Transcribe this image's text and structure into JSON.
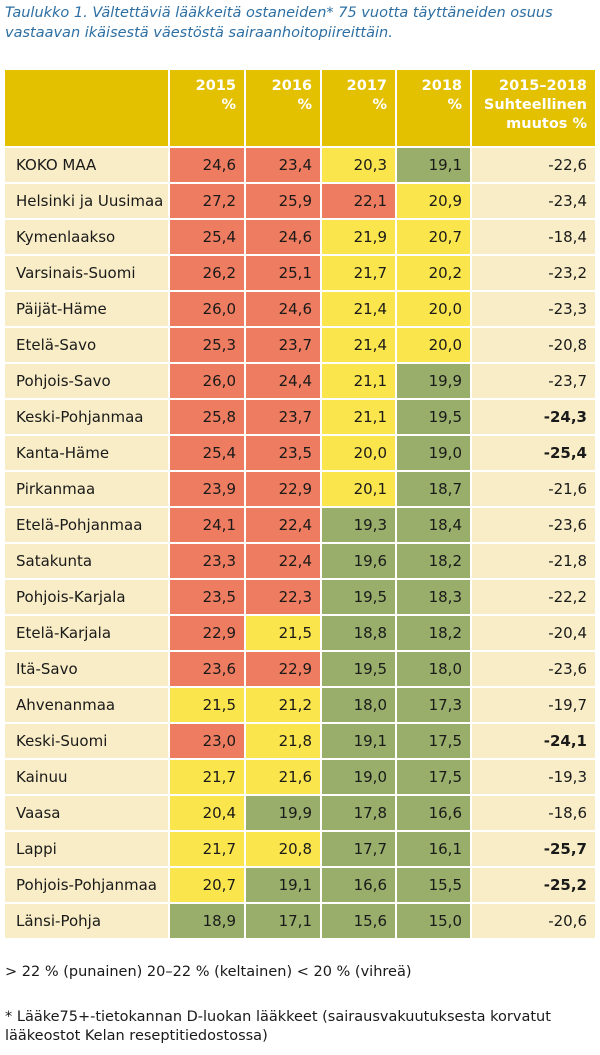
{
  "caption": "Taulukko 1. Vältettäviä lääkkeitä ostaneiden* 75 vuotta täyttäneiden osuus vastaavan ikäisestä väestöstä sairaanhoitopiireittäin.",
  "colors": {
    "header": "#e3c100",
    "red": "#ee7c60",
    "yellow": "#fae54c",
    "green": "#98ae6a",
    "beige": "#f8edc6"
  },
  "legend_text": "> 22 % (punainen) 20–22 % (keltainen) < 20 % (vihreä)",
  "footnote": "* Lääke75+-tietokannan D-luokan lääkkeet (sairausvakuutuksesta korvatut lääkeostot Kelan reseptitiedostossa)",
  "chart_data": {
    "type": "table",
    "columns": [
      "2015\n%",
      "2016\n%",
      "2017\n%",
      "2018\n%",
      "2015–2018\nSuhteellinen\nmuutos %"
    ],
    "rows": [
      {
        "name": "KOKO MAA",
        "values": [
          "24,6",
          "23,4",
          "20,3",
          "19,1"
        ],
        "change": "-22,6",
        "bold": false
      },
      {
        "name": "Helsinki ja Uusimaa",
        "values": [
          "27,2",
          "25,9",
          "22,1",
          "20,9"
        ],
        "change": "-23,4",
        "bold": false
      },
      {
        "name": "Kymenlaakso",
        "values": [
          "25,4",
          "24,6",
          "21,9",
          "20,7"
        ],
        "change": "-18,4",
        "bold": false
      },
      {
        "name": "Varsinais-Suomi",
        "values": [
          "26,2",
          "25,1",
          "21,7",
          "20,2"
        ],
        "change": "-23,2",
        "bold": false
      },
      {
        "name": "Päijät-Häme",
        "values": [
          "26,0",
          "24,6",
          "21,4",
          "20,0"
        ],
        "change": "-23,3",
        "bold": false
      },
      {
        "name": "Etelä-Savo",
        "values": [
          "25,3",
          "23,7",
          "21,4",
          "20,0"
        ],
        "change": "-20,8",
        "bold": false
      },
      {
        "name": "Pohjois-Savo",
        "values": [
          "26,0",
          "24,4",
          "21,1",
          "19,9"
        ],
        "change": "-23,7",
        "bold": false
      },
      {
        "name": "Keski-Pohjanmaa",
        "values": [
          "25,8",
          "23,7",
          "21,1",
          "19,5"
        ],
        "change": "-24,3",
        "bold": true
      },
      {
        "name": "Kanta-Häme",
        "values": [
          "25,4",
          "23,5",
          "20,0",
          "19,0"
        ],
        "change": "-25,4",
        "bold": true
      },
      {
        "name": "Pirkanmaa",
        "values": [
          "23,9",
          "22,9",
          "20,1",
          "18,7"
        ],
        "change": "-21,6",
        "bold": false
      },
      {
        "name": "Etelä-Pohjanmaa",
        "values": [
          "24,1",
          "22,4",
          "19,3",
          "18,4"
        ],
        "change": "-23,6",
        "bold": false
      },
      {
        "name": "Satakunta",
        "values": [
          "23,3",
          "22,4",
          "19,6",
          "18,2"
        ],
        "change": "-21,8",
        "bold": false
      },
      {
        "name": "Pohjois-Karjala",
        "values": [
          "23,5",
          "22,3",
          "19,5",
          "18,3"
        ],
        "change": "-22,2",
        "bold": false
      },
      {
        "name": "Etelä-Karjala",
        "values": [
          "22,9",
          "21,5",
          "18,8",
          "18,2"
        ],
        "change": "-20,4",
        "bold": false
      },
      {
        "name": "Itä-Savo",
        "values": [
          "23,6",
          "22,9",
          "19,5",
          "18,0"
        ],
        "change": "-23,6",
        "bold": false
      },
      {
        "name": "Ahvenanmaa",
        "values": [
          "21,5",
          "21,2",
          "18,0",
          "17,3"
        ],
        "change": "-19,7",
        "bold": false
      },
      {
        "name": "Keski-Suomi",
        "values": [
          "23,0",
          "21,8",
          "19,1",
          "17,5"
        ],
        "change": "-24,1",
        "bold": true
      },
      {
        "name": "Kainuu",
        "values": [
          "21,7",
          "21,6",
          "19,0",
          "17,5"
        ],
        "change": "-19,3",
        "bold": false
      },
      {
        "name": "Vaasa",
        "values": [
          "20,4",
          "19,9",
          "17,8",
          "16,6"
        ],
        "change": "-18,6",
        "bold": false
      },
      {
        "name": "Lappi",
        "values": [
          "21,7",
          "20,8",
          "17,7",
          "16,1"
        ],
        "change": "-25,7",
        "bold": true
      },
      {
        "name": "Pohjois-Pohjanmaa",
        "values": [
          "20,7",
          "19,1",
          "16,6",
          "15,5"
        ],
        "change": "-25,2",
        "bold": true
      },
      {
        "name": "Länsi-Pohja",
        "values": [
          "18,9",
          "17,1",
          "15,6",
          "15,0"
        ],
        "change": "-20,6",
        "bold": false
      }
    ]
  }
}
